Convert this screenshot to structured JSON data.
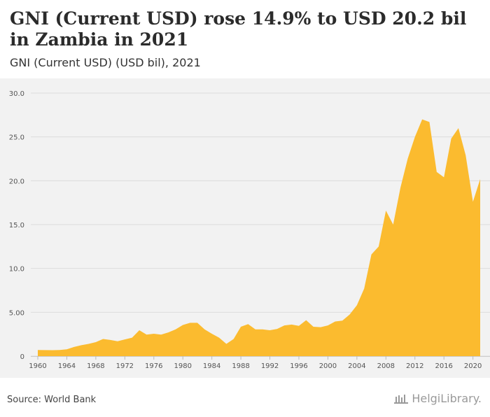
{
  "header": {
    "title": "GNI (Current USD) rose 14.9% to USD 20.2 bil in Zambia in 2021",
    "subtitle": "GNI (Current USD) (USD bil), 2021"
  },
  "footer": {
    "source": "Source: World Bank",
    "logo_text": "HelgiLibrary."
  },
  "colors": {
    "area": "#fbbb2f",
    "grid": "#dcdcdc"
  },
  "chart_data": {
    "type": "area",
    "title": "GNI (Current USD) rose 14.9% to USD 20.2 bil in Zambia in 2021",
    "subtitle": "GNI (Current USD) (USD bil), 2021",
    "xlabel": "",
    "ylabel": "",
    "ylim": [
      0,
      30
    ],
    "xlim": [
      1960,
      2021
    ],
    "yticks": [
      "0",
      "5.00",
      "10.0",
      "15.0",
      "20.0",
      "25.0",
      "30.0"
    ],
    "ytick_values": [
      0,
      5,
      10,
      15,
      20,
      25,
      30
    ],
    "xticks": [
      1960,
      1964,
      1968,
      1972,
      1976,
      1980,
      1984,
      1988,
      1992,
      1996,
      2000,
      2004,
      2008,
      2012,
      2016,
      2020
    ],
    "grid": true,
    "legend": "none",
    "x": [
      1960,
      1961,
      1962,
      1963,
      1964,
      1965,
      1966,
      1967,
      1968,
      1969,
      1970,
      1971,
      1972,
      1973,
      1974,
      1975,
      1976,
      1977,
      1978,
      1979,
      1980,
      1981,
      1982,
      1983,
      1984,
      1985,
      1986,
      1987,
      1988,
      1989,
      1990,
      1991,
      1992,
      1993,
      1994,
      1995,
      1996,
      1997,
      1998,
      1999,
      2000,
      2001,
      2002,
      2003,
      2004,
      2005,
      2006,
      2007,
      2008,
      2009,
      2010,
      2011,
      2012,
      2013,
      2014,
      2015,
      2016,
      2017,
      2018,
      2019,
      2020,
      2021
    ],
    "values": [
      0.7,
      0.69,
      0.68,
      0.7,
      0.78,
      1.05,
      1.25,
      1.4,
      1.6,
      1.95,
      1.85,
      1.7,
      1.9,
      2.1,
      2.95,
      2.45,
      2.55,
      2.45,
      2.7,
      3.05,
      3.55,
      3.8,
      3.8,
      3.05,
      2.55,
      2.1,
      1.4,
      1.95,
      3.35,
      3.65,
      3.05,
      3.05,
      2.95,
      3.1,
      3.5,
      3.6,
      3.45,
      4.1,
      3.35,
      3.3,
      3.5,
      3.95,
      4.05,
      4.75,
      5.8,
      7.7,
      11.6,
      12.5,
      16.6,
      15.0,
      19.2,
      22.5,
      25.0,
      27.0,
      26.7,
      21.0,
      20.4,
      24.8,
      26.0,
      22.9,
      17.6,
      20.2
    ]
  }
}
